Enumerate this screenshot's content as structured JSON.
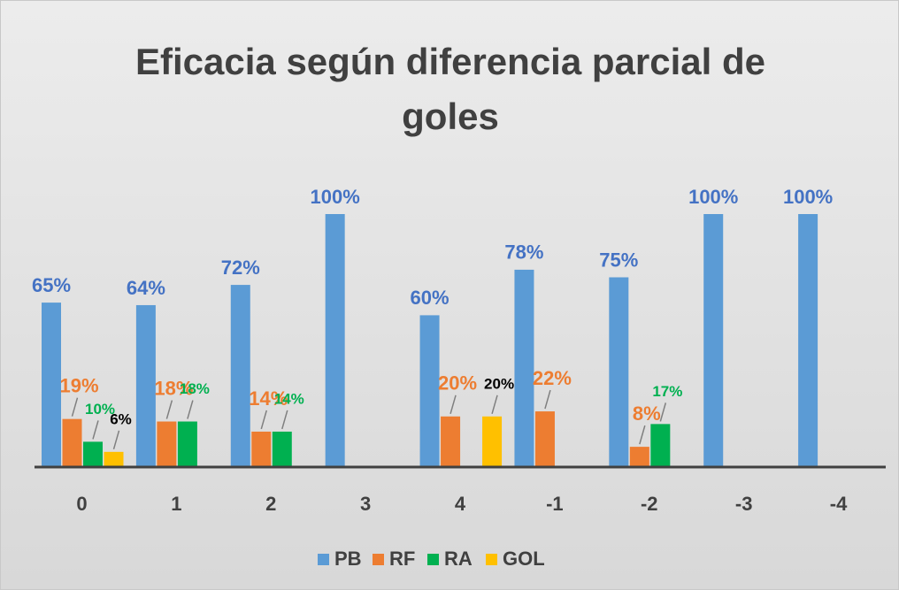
{
  "chart_data": {
    "type": "bar",
    "title": "Eficacia según diferencia parcial de goles",
    "categories": [
      "0",
      "1",
      "2",
      "3",
      "4",
      "-1",
      "-2",
      "-3",
      "-4"
    ],
    "series": [
      {
        "name": "PB",
        "color": "#5b9bd5",
        "label_color": "#4472c4",
        "values": [
          65,
          64,
          72,
          100,
          60,
          78,
          75,
          100,
          100
        ],
        "value_labels": [
          "65%",
          "64%",
          "72%",
          "100%",
          "60%",
          "78%",
          "75%",
          "100%",
          "100%"
        ]
      },
      {
        "name": "RF",
        "color": "#ed7d31",
        "label_color": "#ed7d31",
        "values": [
          19,
          18,
          14,
          null,
          20,
          22,
          8,
          null,
          null
        ],
        "value_labels": [
          "19%",
          "18%",
          "14%",
          null,
          "20%",
          "22%",
          "8%",
          null,
          null
        ]
      },
      {
        "name": "RA",
        "color": "#00b050",
        "label_color": "#00b050",
        "values": [
          10,
          18,
          14,
          null,
          null,
          null,
          17,
          null,
          null
        ],
        "value_labels": [
          "10%",
          "18%",
          "14%",
          null,
          null,
          null,
          "17%",
          null,
          null
        ]
      },
      {
        "name": "GOL",
        "color": "#ffc000",
        "label_color": "#000000",
        "values": [
          6,
          null,
          null,
          null,
          20,
          null,
          null,
          null,
          null
        ],
        "value_labels": [
          "6%",
          null,
          null,
          null,
          "20%",
          null,
          null,
          null,
          null
        ]
      }
    ],
    "legend": "bottom"
  }
}
